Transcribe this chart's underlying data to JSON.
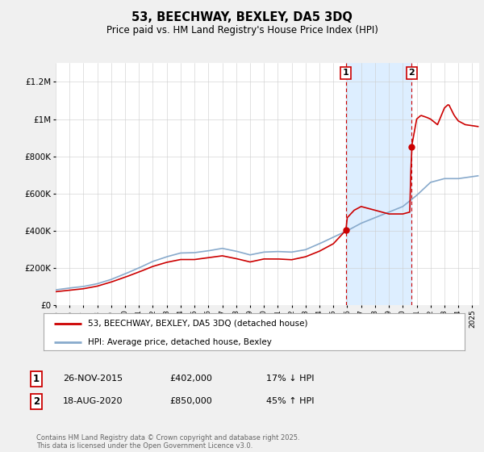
{
  "title": "53, BEECHWAY, BEXLEY, DA5 3DQ",
  "subtitle": "Price paid vs. HM Land Registry's House Price Index (HPI)",
  "ylabel_ticks": [
    "£0",
    "£200K",
    "£400K",
    "£600K",
    "£800K",
    "£1M",
    "£1.2M"
  ],
  "ytick_vals": [
    0,
    200000,
    400000,
    600000,
    800000,
    1000000,
    1200000
  ],
  "ylim": [
    0,
    1300000
  ],
  "xlim_start": 1995.0,
  "xlim_end": 2025.5,
  "house_color": "#cc0000",
  "hpi_color": "#88aacc",
  "shade_color": "#ddeeff",
  "vline_color": "#cc0000",
  "background_color": "#f0f0f0",
  "plot_bg_color": "#ffffff",
  "legend1_text": "53, BEECHWAY, BEXLEY, DA5 3DQ (detached house)",
  "legend2_text": "HPI: Average price, detached house, Bexley",
  "sale1_year": 2015.9,
  "sale1_y": 402000,
  "sale2_year": 2020.63,
  "sale2_y": 850000,
  "transaction1_date": "26-NOV-2015",
  "transaction1_price": "£402,000",
  "transaction1_hpi": "17% ↓ HPI",
  "transaction2_date": "18-AUG-2020",
  "transaction2_price": "£850,000",
  "transaction2_hpi": "45% ↑ HPI",
  "footer": "Contains HM Land Registry data © Crown copyright and database right 2025.\nThis data is licensed under the Open Government Licence v3.0."
}
